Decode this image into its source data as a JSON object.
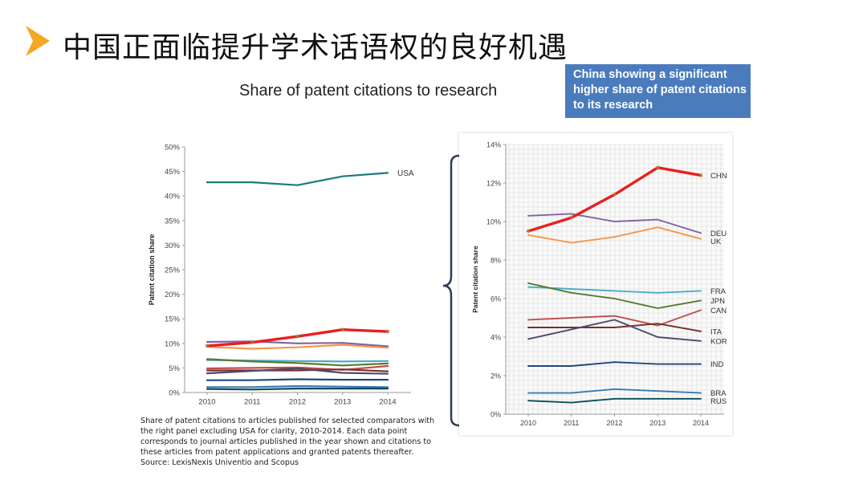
{
  "slide": {
    "title": "中国正面临提升学术话语权的良好机遇",
    "icon": "play-arrow-icon",
    "accent_color": "#f5a623"
  },
  "chart_title": "Share of patent citations to research",
  "callout": {
    "text": "China showing a significant higher share of patent citations to its research",
    "color": "#4a7cbd"
  },
  "caption": {
    "lines": [
      "Share of patent citations to articles published for selected comparators with",
      "the right panel excluding USA for clarity, 2010-2014. Each data point",
      "corresponds to journal articles published in the year shown and citations to",
      "these articles from patent applications and granted patents thereafter.",
      "Source: LexisNexis Univentio and Scopus"
    ]
  },
  "chart_data": [
    {
      "type": "line",
      "panel": "left",
      "ylabel": "Patent citation share",
      "ylim": [
        0,
        50
      ],
      "yticks": [
        "0%",
        "5%",
        "10%",
        "15%",
        "20%",
        "25%",
        "30%",
        "35%",
        "40%",
        "45%",
        "50%"
      ],
      "x": [
        "2010",
        "2011",
        "2012",
        "2013",
        "2014"
      ],
      "labeled_series": [
        "USA"
      ],
      "series": [
        {
          "name": "USA",
          "color": "#1a7a80",
          "values": [
            42.8,
            42.8,
            42.2,
            44.0,
            44.7
          ]
        },
        {
          "name": "CHN",
          "color": "#e8201e",
          "values": [
            9.5,
            10.2,
            11.4,
            12.8,
            12.4
          ]
        },
        {
          "name": "DEU",
          "color": "#8064a2",
          "values": [
            10.3,
            10.4,
            10.0,
            10.1,
            9.4
          ]
        },
        {
          "name": "UK",
          "color": "#f79646",
          "values": [
            9.3,
            8.9,
            9.2,
            9.7,
            9.1
          ]
        },
        {
          "name": "FRA",
          "color": "#4bacc6",
          "values": [
            6.6,
            6.5,
            6.4,
            6.3,
            6.4
          ]
        },
        {
          "name": "JPN",
          "color": "#5a7a2e",
          "values": [
            6.8,
            6.3,
            6.0,
            5.5,
            5.9
          ]
        },
        {
          "name": "CAN",
          "color": "#c0504d",
          "values": [
            4.9,
            5.0,
            5.1,
            4.6,
            5.4
          ]
        },
        {
          "name": "ITA",
          "color": "#7b2d2d",
          "values": [
            4.5,
            4.5,
            4.5,
            4.7,
            4.3
          ]
        },
        {
          "name": "KOR",
          "color": "#4e4a6e",
          "values": [
            3.9,
            4.4,
            4.9,
            4.0,
            3.8
          ]
        },
        {
          "name": "IND",
          "color": "#1f497d",
          "values": [
            2.5,
            2.5,
            2.7,
            2.6,
            2.6
          ]
        },
        {
          "name": "BRA",
          "color": "#3b79b0",
          "values": [
            1.1,
            1.1,
            1.3,
            1.2,
            1.1
          ]
        },
        {
          "name": "RUS",
          "color": "#0a4f5a",
          "values": [
            0.7,
            0.6,
            0.8,
            0.8,
            0.8
          ]
        }
      ]
    },
    {
      "type": "line",
      "panel": "right",
      "ylabel": "Patent citation share",
      "ylim": [
        0,
        14
      ],
      "yticks": [
        "0%",
        "2%",
        "4%",
        "6%",
        "8%",
        "10%",
        "12%",
        "14%"
      ],
      "x": [
        "2010",
        "2011",
        "2012",
        "2013",
        "2014"
      ],
      "series": [
        {
          "name": "CHN",
          "color": "#e8201e",
          "values": [
            9.5,
            10.2,
            11.4,
            12.8,
            12.4
          ]
        },
        {
          "name": "DEU",
          "color": "#8064a2",
          "values": [
            10.3,
            10.4,
            10.0,
            10.1,
            9.4
          ]
        },
        {
          "name": "UK",
          "color": "#f79646",
          "values": [
            9.3,
            8.9,
            9.2,
            9.7,
            9.1
          ]
        },
        {
          "name": "FRA",
          "color": "#4bacc6",
          "values": [
            6.6,
            6.5,
            6.4,
            6.3,
            6.4
          ]
        },
        {
          "name": "JPN",
          "color": "#5a7a2e",
          "values": [
            6.8,
            6.3,
            6.0,
            5.5,
            5.9
          ]
        },
        {
          "name": "CAN",
          "color": "#c0504d",
          "values": [
            4.9,
            5.0,
            5.1,
            4.6,
            5.4
          ]
        },
        {
          "name": "ITA",
          "color": "#7b2d2d",
          "values": [
            4.5,
            4.5,
            4.5,
            4.7,
            4.3
          ]
        },
        {
          "name": "KOR",
          "color": "#4e4a6e",
          "values": [
            3.9,
            4.4,
            4.9,
            4.0,
            3.8
          ]
        },
        {
          "name": "IND",
          "color": "#1f497d",
          "values": [
            2.5,
            2.5,
            2.7,
            2.6,
            2.6
          ]
        },
        {
          "name": "BRA",
          "color": "#3b79b0",
          "values": [
            1.1,
            1.1,
            1.3,
            1.2,
            1.1
          ]
        },
        {
          "name": "RUS",
          "color": "#0a4f5a",
          "values": [
            0.7,
            0.6,
            0.8,
            0.8,
            0.8
          ]
        }
      ]
    }
  ]
}
